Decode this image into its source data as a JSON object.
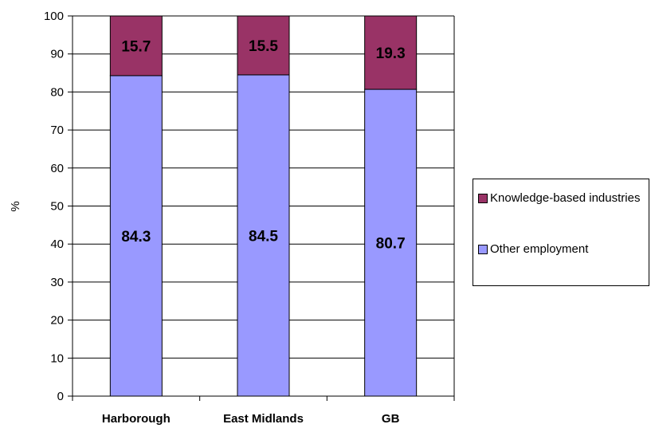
{
  "chart_data": {
    "type": "bar",
    "stacked": true,
    "categories": [
      "Harborough",
      "East Midlands",
      "GB"
    ],
    "series": [
      {
        "name": "Other employment",
        "values": [
          84.3,
          84.5,
          80.7
        ],
        "color": "#9999ff"
      },
      {
        "name": "Knowledge-based industries",
        "values": [
          15.7,
          15.5,
          19.3
        ],
        "color": "#993366"
      }
    ],
    "title": "",
    "xlabel": "",
    "ylabel": "%",
    "ylim": [
      0,
      100
    ],
    "yticks": [
      0,
      10,
      20,
      30,
      40,
      50,
      60,
      70,
      80,
      90,
      100
    ],
    "grid": true,
    "legend_position": "right",
    "legend": [
      "Knowledge-based industries",
      "Other employment"
    ]
  }
}
